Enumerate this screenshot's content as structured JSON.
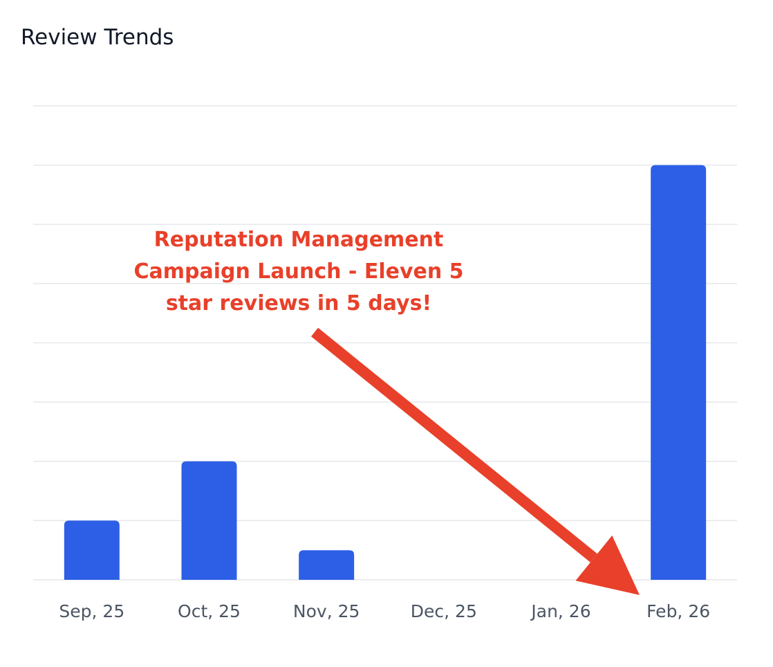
{
  "card": {
    "title": "Review Trends"
  },
  "chart_data": {
    "type": "bar",
    "categories": [
      "Sep, 25",
      "Oct, 25",
      "Nov, 25",
      "Dec, 25",
      "Jan, 26",
      "Feb, 26"
    ],
    "values": [
      2,
      4,
      1,
      0,
      0,
      14
    ],
    "title": "Review Trends",
    "xlabel": "",
    "ylabel": "",
    "ylim": [
      0,
      16
    ],
    "grid": true,
    "y_tick_labels_visible": false,
    "legend": "none",
    "bar_color": "#2d5fe6",
    "grid_color": "#e5e7eb",
    "annotation": {
      "lines": [
        "Reputation Management",
        "Campaign Launch - Eleven 5",
        "star reviews in 5 days!"
      ],
      "color": "#e8402a",
      "points_to": "Feb, 26"
    }
  }
}
